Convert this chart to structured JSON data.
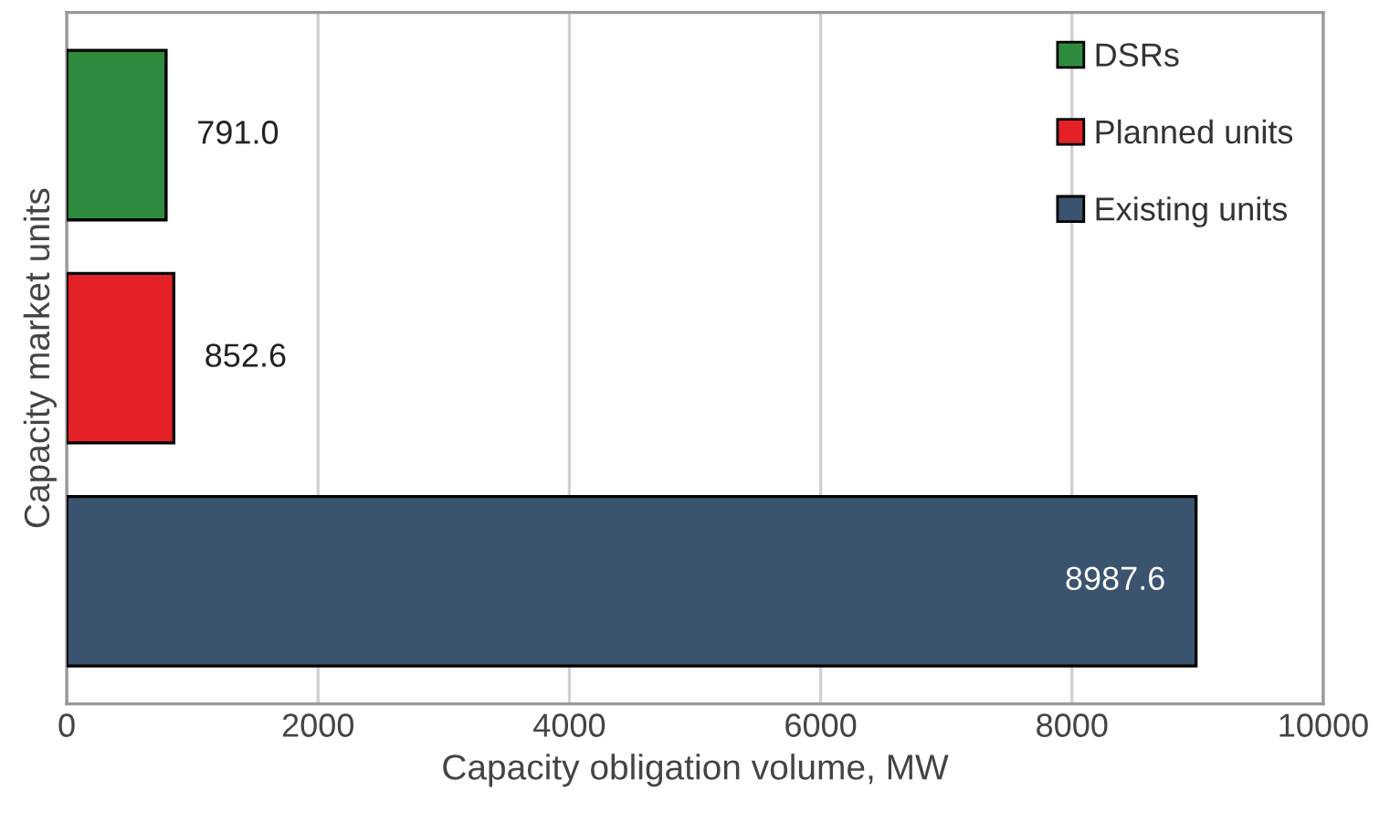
{
  "chart_data": {
    "type": "bar",
    "orientation": "horizontal",
    "xlabel": "Capacity obligation volume, MW",
    "ylabel": "Capacity market units",
    "categories": [
      null,
      null,
      null
    ],
    "series": [
      {
        "name": "DSRs",
        "color": "#2e8b3e",
        "values": [
          791.0,
          null,
          null
        ],
        "value_labels": [
          "791.0",
          null,
          null
        ]
      },
      {
        "name": "Planned units",
        "color": "#e32127",
        "values": [
          null,
          852.6,
          null
        ],
        "value_labels": [
          null,
          "852.6",
          null
        ]
      },
      {
        "name": "Existing units",
        "color": "#3a536e",
        "values": [
          null,
          null,
          8987.6
        ],
        "value_labels": [
          null,
          null,
          "8987.6"
        ]
      }
    ],
    "xlim": [
      0,
      10000
    ],
    "xticks": [
      0,
      2000,
      4000,
      6000,
      8000,
      10000
    ],
    "grid": "x",
    "legend": "top right"
  }
}
